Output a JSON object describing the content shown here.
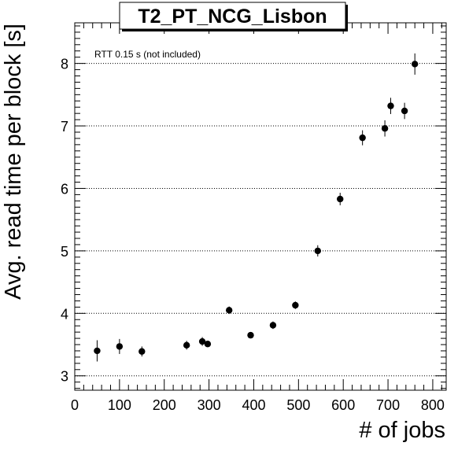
{
  "chart_data": {
    "type": "scatter",
    "title": "T2_PT_NCG_Lisbon",
    "xlabel": "# of jobs",
    "ylabel": "Avg. read time per block [s]",
    "annotation": "RTT 0.15 s (not included)",
    "xlim": [
      0,
      830
    ],
    "ylim": [
      2.77,
      8.65
    ],
    "x_ticks": [
      0,
      100,
      200,
      300,
      400,
      500,
      600,
      700,
      800
    ],
    "y_ticks": [
      3,
      4,
      5,
      6,
      7,
      8
    ],
    "grid": "horizontal dotted",
    "points": [
      {
        "x": 50,
        "y": 3.4,
        "err": 0.17
      },
      {
        "x": 100,
        "y": 3.47,
        "err": 0.12
      },
      {
        "x": 150,
        "y": 3.39,
        "err": 0.08
      },
      {
        "x": 250,
        "y": 3.49,
        "err": 0.07
      },
      {
        "x": 285,
        "y": 3.55,
        "err": 0.07
      },
      {
        "x": 297,
        "y": 3.51,
        "err": 0.05
      },
      {
        "x": 345,
        "y": 4.05,
        "err": 0.06
      },
      {
        "x": 393,
        "y": 3.65,
        "err": 0.05
      },
      {
        "x": 443,
        "y": 3.81,
        "err": 0.06
      },
      {
        "x": 493,
        "y": 4.13,
        "err": 0.06
      },
      {
        "x": 543,
        "y": 5.0,
        "err": 0.09
      },
      {
        "x": 593,
        "y": 5.83,
        "err": 0.1
      },
      {
        "x": 643,
        "y": 6.81,
        "err": 0.12
      },
      {
        "x": 693,
        "y": 6.96,
        "err": 0.13
      },
      {
        "x": 706,
        "y": 7.32,
        "err": 0.13
      },
      {
        "x": 737,
        "y": 7.24,
        "err": 0.13
      },
      {
        "x": 760,
        "y": 7.99,
        "err": 0.17
      }
    ]
  }
}
